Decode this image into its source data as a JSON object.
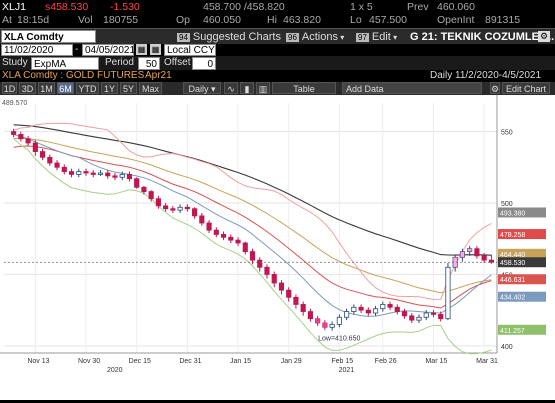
{
  "quote": {
    "ticker": "XLJ1",
    "price_prefix": "s",
    "price": "458.530",
    "change": "-1.530",
    "bid_ask": "458.700 /458.820",
    "size": "1 x 5",
    "prev_label": "Prev",
    "prev_value": "460.060",
    "at_label": "At",
    "at_time": "18:15d",
    "vol_label": "Vol",
    "vol_value": "180755",
    "op_label": "Op",
    "op_value": "460.050",
    "hi_label": "Hi",
    "hi_value": "463.820",
    "lo_label": "Lo",
    "lo_value": "457.500",
    "oi_label": "OpenInt",
    "oi_value": "891315"
  },
  "toolbar": {
    "security": "XLA Comdty",
    "suggested_num": "94",
    "suggested_label": "Suggested Charts",
    "actions_num": "96",
    "actions_label": "Actions",
    "edit_num": "97",
    "edit_label": "Edit",
    "title": "G 21: TEKNIK COZUMLEM..."
  },
  "dates": {
    "start": "11/02/2020",
    "end": "04/05/2021",
    "currency": "Local CCY"
  },
  "study": {
    "label": "Study",
    "value": "ExpMA",
    "period_label": "Period",
    "period_value": "50",
    "offset_label": "Offset",
    "offset_value": "0"
  },
  "subtitle": {
    "left": "XLA Comdty : GOLD FUTURES",
    "contract": "Apr21",
    "right": "Daily    11/2/2020-4/5/2021"
  },
  "controls": {
    "ranges": [
      "1D",
      "3D",
      "1M",
      "6M",
      "YTD",
      "1Y",
      "5Y",
      "Max"
    ],
    "selected": "6M",
    "freq": "Daily",
    "table": "Table",
    "add_data": "Add Data",
    "edit_chart": "Edit Chart"
  },
  "chart_data": {
    "type": "candlestick",
    "instrument": "XLA Comdty : GOLD FUTURES",
    "ylim": [
      395,
      570
    ],
    "top_label": "489.570",
    "y_ticks": [
      400,
      450,
      500,
      550
    ],
    "x_ticks": [
      "Nov 13",
      "Nov 30",
      "Dec 15",
      "Dec 31",
      "Jan 15",
      "Jan 29",
      "Feb 15",
      "Feb 26",
      "Mar 15",
      "Mar 31"
    ],
    "year_labels": [
      "2020",
      "2021"
    ],
    "right_labels": [
      {
        "value": 493.38,
        "color": "#8a8a8a"
      },
      {
        "value": 478.258,
        "color": "#e14a4a"
      },
      {
        "value": 464.44,
        "color": "#c9a25a"
      },
      {
        "value": 458.53,
        "color": "#3a3a3a"
      },
      {
        "value": 446.631,
        "color": "#d9534f"
      },
      {
        "value": 434.402,
        "color": "#7a9abf"
      },
      {
        "value": 411.257,
        "color": "#8fbf6a"
      }
    ],
    "annotation": "Low=410.650",
    "candles": [
      [
        550,
        548,
        552,
        546
      ],
      [
        548,
        545,
        550,
        543
      ],
      [
        545,
        542,
        547,
        540
      ],
      [
        542,
        536,
        544,
        533
      ],
      [
        536,
        532,
        538,
        530
      ],
      [
        532,
        528,
        534,
        526
      ],
      [
        528,
        525,
        530,
        523
      ],
      [
        525,
        522,
        527,
        520
      ],
      [
        522,
        520,
        524,
        518
      ],
      [
        520,
        522,
        524,
        518
      ],
      [
        522,
        521,
        524,
        519
      ],
      [
        521,
        520,
        523,
        518
      ],
      [
        520,
        521,
        523,
        519
      ],
      [
        521,
        519,
        523,
        517
      ],
      [
        519,
        518,
        521,
        516
      ],
      [
        518,
        520,
        522,
        516
      ],
      [
        520,
        517,
        522,
        515
      ],
      [
        517,
        511,
        518,
        510
      ],
      [
        511,
        508,
        512,
        506
      ],
      [
        508,
        503,
        509,
        501
      ],
      [
        503,
        498,
        505,
        496
      ],
      [
        498,
        496,
        500,
        494
      ],
      [
        496,
        495,
        498,
        493
      ],
      [
        495,
        497,
        499,
        493
      ],
      [
        497,
        496,
        499,
        494
      ],
      [
        496,
        491,
        497,
        489
      ],
      [
        491,
        486,
        493,
        484
      ],
      [
        486,
        481,
        488,
        479
      ],
      [
        481,
        478,
        483,
        476
      ],
      [
        478,
        476,
        480,
        474
      ],
      [
        476,
        474,
        478,
        472
      ],
      [
        474,
        472,
        476,
        470
      ],
      [
        472,
        466,
        473,
        464
      ],
      [
        466,
        460,
        468,
        457
      ],
      [
        460,
        455,
        462,
        452
      ],
      [
        455,
        450,
        457,
        447
      ],
      [
        450,
        444,
        452,
        441
      ],
      [
        444,
        439,
        446,
        436
      ],
      [
        439,
        434,
        441,
        431
      ],
      [
        434,
        429,
        436,
        426
      ],
      [
        429,
        424,
        431,
        421
      ],
      [
        424,
        419,
        426,
        417
      ],
      [
        419,
        416,
        421,
        414
      ],
      [
        416,
        413,
        418,
        411
      ],
      [
        413,
        415,
        417,
        410.65
      ],
      [
        415,
        420,
        422,
        413
      ],
      [
        420,
        424,
        426,
        418
      ],
      [
        424,
        427,
        429,
        422
      ],
      [
        427,
        425,
        429,
        423
      ],
      [
        425,
        423,
        427,
        421
      ],
      [
        423,
        426,
        428,
        421
      ],
      [
        426,
        429,
        431,
        424
      ],
      [
        429,
        427,
        431,
        425
      ],
      [
        427,
        424,
        429,
        422
      ],
      [
        424,
        421,
        426,
        419
      ],
      [
        421,
        418,
        423,
        416
      ],
      [
        418,
        420,
        422,
        416
      ],
      [
        420,
        423,
        425,
        418
      ],
      [
        423,
        422,
        425,
        420
      ],
      [
        422,
        419,
        424,
        417
      ],
      [
        419,
        455,
        458,
        418
      ],
      [
        455,
        462,
        464,
        452
      ],
      [
        462,
        466,
        468,
        459
      ],
      [
        466,
        468,
        470,
        463
      ],
      [
        468,
        463,
        470,
        461
      ],
      [
        463,
        460,
        465,
        458
      ],
      [
        460,
        458.53,
        463.82,
        457.5
      ]
    ]
  }
}
